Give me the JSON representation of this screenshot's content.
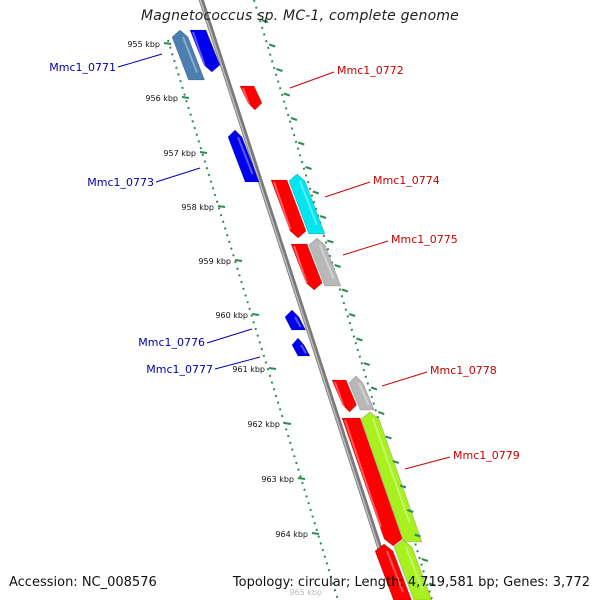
{
  "title": "Magnetococcus sp. MC-1, complete genome",
  "footer": {
    "accession": "Accession: NC_008576",
    "stats": "Topology: circular; Length: 4,719,581 bp; Genes: 3,772"
  },
  "colors": {
    "forward_label": "#cc0000",
    "reverse_label": "#0000aa",
    "red": "#ff0000",
    "blue": "#0000ee",
    "steelblue": "#4a7fb0",
    "cyan": "#00e5f0",
    "gray": "#b8b8b8",
    "lime": "#a8f020",
    "ticks": "#2e8b57"
  },
  "ticks": [
    "955 kbp",
    "956 kbp",
    "957 kbp",
    "958 kbp",
    "959 kbp",
    "960 kbp",
    "961 kbp",
    "962 kbp",
    "963 kbp",
    "964 kbp"
  ],
  "faint_tick": "965 kbp",
  "gene_labels": [
    {
      "text": "Mmc1_0771",
      "strand": "reverse"
    },
    {
      "text": "Mmc1_0772",
      "strand": "forward"
    },
    {
      "text": "Mmc1_0773",
      "strand": "reverse"
    },
    {
      "text": "Mmc1_0774",
      "strand": "forward"
    },
    {
      "text": "Mmc1_0775",
      "strand": "forward"
    },
    {
      "text": "Mmc1_0776",
      "strand": "reverse"
    },
    {
      "text": "Mmc1_0777",
      "strand": "reverse"
    },
    {
      "text": "Mmc1_0778",
      "strand": "forward"
    },
    {
      "text": "Mmc1_0779",
      "strand": "forward"
    }
  ]
}
